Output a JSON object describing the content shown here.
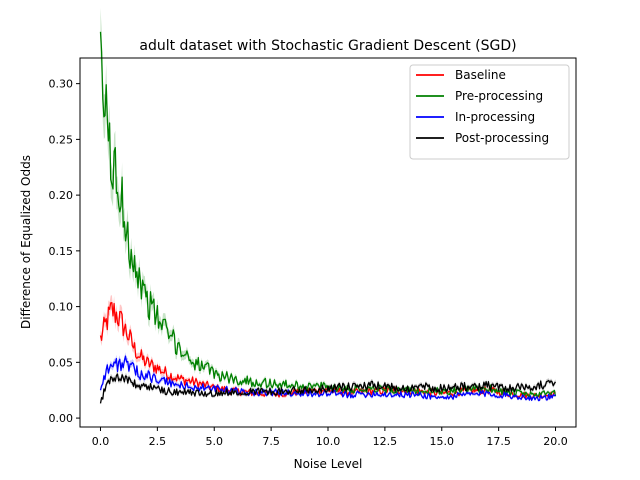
{
  "chart_data": {
    "type": "line",
    "title": "adult dataset with Stochastic Gradient Descent (SGD)",
    "xlabel": "Noise Level",
    "ylabel": "Difference of Equalized Odds",
    "xlim": [
      -0.9,
      20.9
    ],
    "ylim": [
      -0.008,
      0.323
    ],
    "xticks": [
      0.0,
      2.5,
      5.0,
      7.5,
      10.0,
      12.5,
      15.0,
      17.5,
      20.0
    ],
    "xtick_labels": [
      "0.0",
      "2.5",
      "5.0",
      "7.5",
      "10.0",
      "12.5",
      "15.0",
      "17.5",
      "20.0"
    ],
    "yticks": [
      0.0,
      0.05,
      0.1,
      0.15,
      0.2,
      0.25,
      0.3
    ],
    "ytick_labels": [
      "0.00",
      "0.05",
      "0.10",
      "0.15",
      "0.20",
      "0.25",
      "0.30"
    ],
    "grid": false,
    "legend_position": "top-right",
    "x": [
      0,
      0.25,
      0.5,
      0.75,
      1.0,
      1.25,
      1.5,
      1.75,
      2.0,
      2.5,
      3.0,
      3.5,
      4.0,
      4.5,
      5.0,
      6.0,
      7.0,
      8.0,
      9.0,
      10.0,
      11.0,
      12.0,
      13.0,
      14.0,
      15.0,
      16.0,
      17.0,
      18.0,
      19.0,
      20.0
    ],
    "series": [
      {
        "name": "Baseline",
        "color": "#ff0000",
        "values": [
          0.071,
          0.085,
          0.097,
          0.092,
          0.083,
          0.073,
          0.062,
          0.055,
          0.05,
          0.045,
          0.039,
          0.035,
          0.033,
          0.03,
          0.027,
          0.024,
          0.022,
          0.022,
          0.024,
          0.025,
          0.023,
          0.024,
          0.025,
          0.024,
          0.022,
          0.024,
          0.025,
          0.022,
          0.02,
          0.021
        ]
      },
      {
        "name": "Pre-processing",
        "color": "#008000",
        "values": [
          0.308,
          0.27,
          0.23,
          0.205,
          0.19,
          0.16,
          0.14,
          0.122,
          0.108,
          0.09,
          0.075,
          0.062,
          0.052,
          0.046,
          0.04,
          0.034,
          0.032,
          0.03,
          0.029,
          0.028,
          0.026,
          0.027,
          0.025,
          0.024,
          0.024,
          0.025,
          0.027,
          0.023,
          0.021,
          0.022
        ]
      },
      {
        "name": "In-processing",
        "color": "#0000ff",
        "values": [
          0.027,
          0.043,
          0.047,
          0.048,
          0.05,
          0.047,
          0.042,
          0.04,
          0.039,
          0.034,
          0.032,
          0.029,
          0.028,
          0.027,
          0.026,
          0.024,
          0.023,
          0.023,
          0.022,
          0.022,
          0.021,
          0.022,
          0.021,
          0.021,
          0.018,
          0.021,
          0.022,
          0.02,
          0.018,
          0.019
        ]
      },
      {
        "name": "Post-processing",
        "color": "#000000",
        "values": [
          0.013,
          0.03,
          0.036,
          0.036,
          0.037,
          0.034,
          0.03,
          0.028,
          0.029,
          0.026,
          0.024,
          0.023,
          0.023,
          0.022,
          0.022,
          0.024,
          0.024,
          0.024,
          0.025,
          0.027,
          0.028,
          0.029,
          0.027,
          0.028,
          0.027,
          0.028,
          0.029,
          0.027,
          0.029,
          0.03
        ]
      }
    ]
  }
}
